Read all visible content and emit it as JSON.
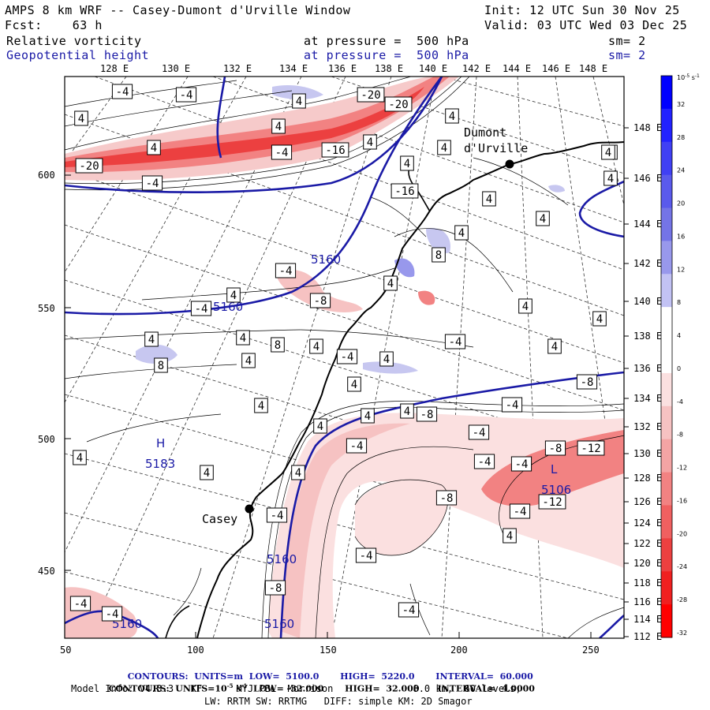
{
  "header": {
    "title": "AMPS 8 km WRF -- Casey-Dumont d'Urville Window",
    "init": "Init: 12 UTC Sun 30 Nov 25",
    "forecast": "Fcst:    63 h",
    "valid": "Valid: 03 UTC Wed 03 Dec 25",
    "field1": {
      "name": "Relative vorticity",
      "pressure": "at pressure =  500 hPa",
      "smooth": "sm= 2"
    },
    "field2": {
      "name": "Geopotential height",
      "pressure": "at pressure =  500 hPa",
      "smooth": "sm= 2"
    }
  },
  "colors": {
    "navy": "#1a1aa6",
    "red": "#e83030",
    "lightred": "#f6caca",
    "lightblue": "#c7c7f0"
  },
  "axes": {
    "top_lon": [
      "128 E",
      "130 E",
      "132 E",
      "134 E",
      "136 E",
      "138 E",
      "140 E",
      "142 E",
      "144 E",
      "146 E",
      "148 E"
    ],
    "bottom": [
      "50",
      "100",
      "150",
      "200",
      "250"
    ],
    "left": [
      "600",
      "550",
      "500",
      "450"
    ],
    "right_lon": [
      "148 E",
      "146 E",
      "144 E",
      "142 E",
      "140 E",
      "138 E",
      "136 E",
      "134 E",
      "132 E",
      "130 E",
      "128 E",
      "126 E",
      "124 E",
      "122 E",
      "120 E",
      "118 E",
      "116 E",
      "114 E",
      "112 E"
    ]
  },
  "colorbar": {
    "unit_exp": "-5",
    "unit_label": "10",
    "unit_suffix": "s",
    "ticks": [
      "32",
      "28",
      "24",
      "20",
      "16",
      "12",
      "8",
      "4",
      "0",
      "-4",
      "-8",
      "-12",
      "-16",
      "-20",
      "-24",
      "-28",
      "-32"
    ],
    "colors": [
      "#0000ff",
      "#2222ff",
      "#4040f4",
      "#5a5aec",
      "#7474e6",
      "#9898ec",
      "#c2c2f4",
      "#ffffff",
      "#ffffff",
      "#fbe0e0",
      "#f6c2c2",
      "#f4a4a4",
      "#f28282",
      "#f06060",
      "#ec4040",
      "#f02020",
      "#ff0000"
    ]
  },
  "places": [
    {
      "name": "Dumont",
      "name2": "d'Urville"
    },
    {
      "name": "Casey"
    }
  ],
  "highs_lows": [
    {
      "letter": "H",
      "value": "5183"
    },
    {
      "letter": "L",
      "value": "5106"
    }
  ],
  "height_labels": [
    "5160",
    "5160",
    "5160",
    "5160",
    "5160"
  ],
  "vort_labels": [
    "-4",
    "-4",
    "4",
    "4",
    "-20",
    "4",
    "4",
    "-4",
    "4",
    "-16",
    "-20",
    "-16",
    "4",
    "4",
    "4",
    "4",
    "-20",
    "-4",
    "4",
    "4",
    "4",
    "4",
    "8",
    "-4",
    "4",
    "8",
    "4",
    "-4",
    "-8",
    "4",
    "4",
    "4",
    "4",
    "8",
    "4",
    "-4",
    "-4",
    "4",
    "4",
    "4",
    "4",
    "4",
    "4",
    "4",
    "4",
    "-4",
    "4",
    "-8",
    "-4",
    "-8",
    "-4",
    "-4",
    "4",
    "-4",
    "-4",
    "-8",
    "-12",
    "-12",
    "-8",
    "4",
    "-4",
    "4",
    "-4",
    "-4",
    "-8",
    "-4",
    "-4",
    "4"
  ],
  "footer": {
    "c1": {
      "label": "CONTOURS:",
      "units": "UNITS=m",
      "low": "LOW=  5100.0",
      "high": "HIGH=  5220.0",
      "interval": "INTERVAL=  60.000"
    },
    "c2": {
      "label": "CONTOURS:",
      "units_pre": "UNITS=10",
      "units_exp": "-5",
      "units_post": " s",
      "units_exp2": "-1",
      "low": "LOW= -32.000",
      "high": "HIGH=  32.000",
      "interval": "INTERVAL=  4.0000"
    },
    "model": "Model Info: V4.3.3   KF      MYJ PBL  Morrison              8.0 km,  60 levels,",
    "model2": "LW: RRTM SW: RRTMG   DIFF: simple KM: 2D Smagor"
  }
}
